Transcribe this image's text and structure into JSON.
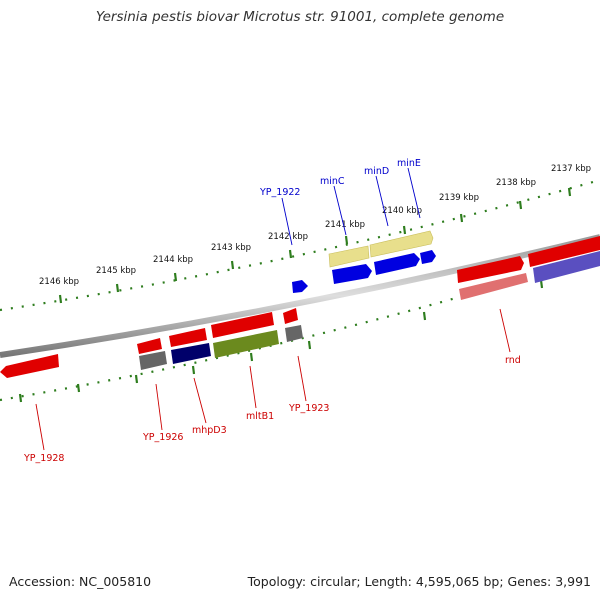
{
  "title": "Yersinia pestis biovar Microtus str. 91001, complete genome",
  "footer": {
    "accession": "Accession: NC_005810",
    "summary": "Topology: circular; Length: 4,595,065 bp; Genes: 3,991"
  },
  "scale_ticks": [
    "2137 kbp",
    "2138 kbp",
    "2139 kbp",
    "2140 kbp",
    "2141 kbp",
    "2142 kbp",
    "2143 kbp",
    "2144 kbp",
    "2145 kbp",
    "2146 kbp"
  ],
  "upper_labels": [
    "YP_1922",
    "minC",
    "minD",
    "minE"
  ],
  "lower_labels": [
    "YP_1928",
    "YP_1926",
    "mhpD3",
    "mltB1",
    "YP_1923",
    "rnd"
  ],
  "colors": {
    "red": "#e00000",
    "blue": "#0000e0",
    "navy": "#00006a",
    "olive": "#6b8a1e",
    "khaki": "#e8df8c",
    "pink": "#e07070",
    "grey": "#666666",
    "tick_green": "#2e7d1e"
  }
}
